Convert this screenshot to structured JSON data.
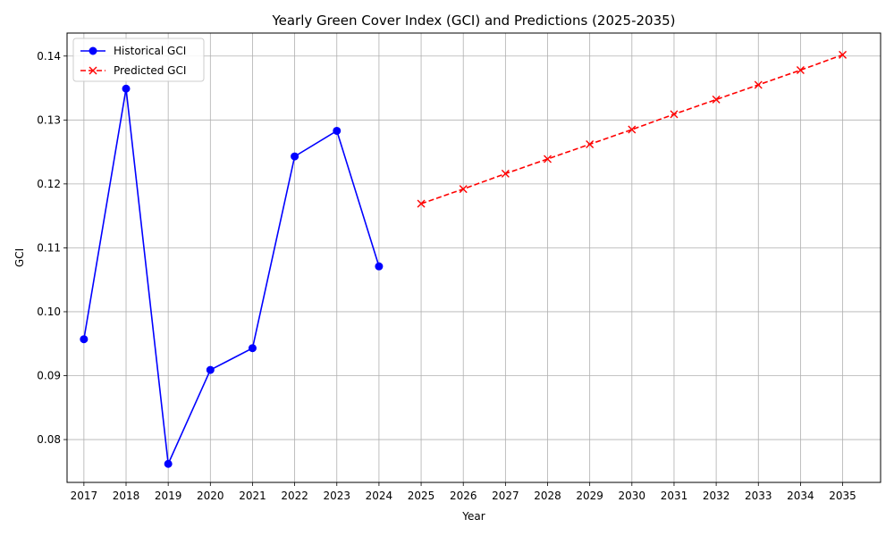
{
  "chart_data": {
    "type": "line",
    "title": "Yearly Green Cover Index (GCI) and Predictions (2025-2035)",
    "xlabel": "Year",
    "ylabel": "GCI",
    "xlim": [
      2016.6,
      2035.9
    ],
    "ylim": [
      0.0733,
      0.1436
    ],
    "x_ticks": [
      2017,
      2018,
      2019,
      2020,
      2021,
      2022,
      2023,
      2024,
      2025,
      2026,
      2027,
      2028,
      2029,
      2030,
      2031,
      2032,
      2033,
      2034,
      2035
    ],
    "y_ticks": [
      0.08,
      0.09,
      0.1,
      0.11,
      0.12,
      0.13,
      0.14
    ],
    "y_tick_labels": [
      "0.08",
      "0.09",
      "0.10",
      "0.11",
      "0.12",
      "0.13",
      "0.14"
    ],
    "grid": true,
    "legend_position": "top-left",
    "series": [
      {
        "name": "Historical GCI",
        "color": "#0000ff",
        "line_style": "solid",
        "marker": "circle",
        "x": [
          2017,
          2018,
          2019,
          2020,
          2021,
          2022,
          2023,
          2024
        ],
        "y": [
          0.0957,
          0.1349,
          0.0762,
          0.0909,
          0.0943,
          0.1243,
          0.1283,
          0.1071
        ]
      },
      {
        "name": "Predicted GCI",
        "color": "#ff0000",
        "line_style": "dashed",
        "marker": "x",
        "x": [
          2025,
          2026,
          2027,
          2028,
          2029,
          2030,
          2031,
          2032,
          2033,
          2034,
          2035
        ],
        "y": [
          0.1169,
          0.1192,
          0.1216,
          0.1239,
          0.1262,
          0.1285,
          0.1309,
          0.1332,
          0.1355,
          0.1378,
          0.1402
        ]
      }
    ]
  }
}
